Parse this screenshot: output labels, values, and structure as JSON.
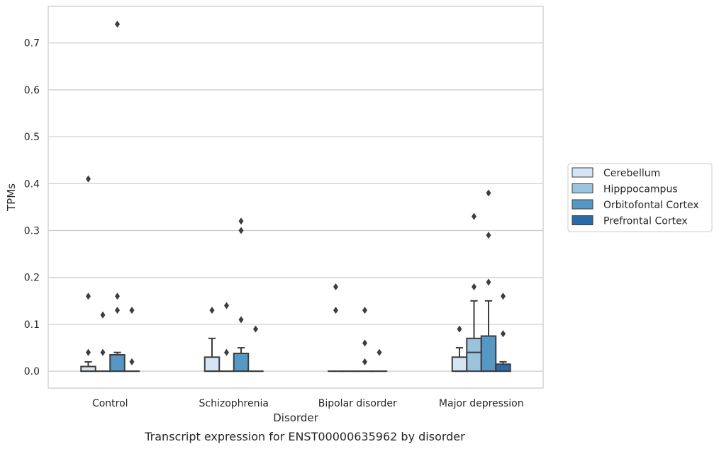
{
  "chart_data": {
    "type": "box",
    "xlabel": "Disorder",
    "ylabel": "TPMs",
    "caption": "Transcript expression for ENST00000635962 by disorder",
    "ylim": [
      -0.036,
      0.778
    ],
    "yticks": [
      "0.0",
      "0.1",
      "0.2",
      "0.3",
      "0.4",
      "0.5",
      "0.6",
      "0.7"
    ],
    "grid": "horizontal",
    "legend_position": "right",
    "categories": [
      "Control",
      "Schizophrenia",
      "Bipolar disorder",
      "Major depression"
    ],
    "series": [
      {
        "name": "Cerebellum",
        "color": "#d6e5f3",
        "boxes": [
          {
            "q1": 0.0,
            "median": 0.0,
            "q3": 0.01,
            "whisker_low": 0.0,
            "whisker_high": 0.02,
            "outliers": [
              0.04,
              0.16,
              0.41
            ]
          },
          {
            "q1": 0.0,
            "median": 0.0,
            "q3": 0.03,
            "whisker_low": 0.0,
            "whisker_high": 0.07,
            "outliers": [
              0.13
            ]
          },
          {
            "q1": 0.0,
            "median": 0.0,
            "q3": 0.0,
            "whisker_low": 0.0,
            "whisker_high": 0.0,
            "outliers": [
              0.13,
              0.18
            ]
          },
          {
            "q1": 0.0,
            "median": 0.0,
            "q3": 0.03,
            "whisker_low": 0.0,
            "whisker_high": 0.05,
            "outliers": [
              0.09
            ]
          }
        ]
      },
      {
        "name": "Hipppocampus",
        "color": "#9ac3dd",
        "boxes": [
          {
            "q1": 0.0,
            "median": 0.0,
            "q3": 0.0,
            "whisker_low": 0.0,
            "whisker_high": 0.0,
            "outliers": [
              0.04,
              0.12
            ]
          },
          {
            "q1": 0.0,
            "median": 0.0,
            "q3": 0.0,
            "whisker_low": 0.0,
            "whisker_high": 0.0,
            "outliers": [
              0.04,
              0.14
            ]
          },
          {
            "q1": 0.0,
            "median": 0.0,
            "q3": 0.0,
            "whisker_low": 0.0,
            "whisker_high": 0.0,
            "outliers": []
          },
          {
            "q1": 0.0,
            "median": 0.04,
            "q3": 0.07,
            "whisker_low": 0.0,
            "whisker_high": 0.15,
            "outliers": [
              0.18,
              0.33
            ]
          }
        ]
      },
      {
        "name": "Orbitofontal Cortex",
        "color": "#5597c5",
        "boxes": [
          {
            "q1": 0.0,
            "median": 0.0,
            "q3": 0.035,
            "whisker_low": 0.0,
            "whisker_high": 0.04,
            "outliers": [
              0.13,
              0.16,
              0.74
            ]
          },
          {
            "q1": 0.0,
            "median": 0.0,
            "q3": 0.038,
            "whisker_low": 0.0,
            "whisker_high": 0.05,
            "outliers": [
              0.11,
              0.3,
              0.32
            ]
          },
          {
            "q1": 0.0,
            "median": 0.0,
            "q3": 0.0,
            "whisker_low": 0.0,
            "whisker_high": 0.0,
            "outliers": [
              0.02,
              0.06,
              0.13
            ]
          },
          {
            "q1": 0.0,
            "median": 0.0,
            "q3": 0.075,
            "whisker_low": 0.0,
            "whisker_high": 0.15,
            "outliers": [
              0.19,
              0.29,
              0.38
            ]
          }
        ]
      },
      {
        "name": "Prefrontal Cortex",
        "color": "#2b6aa8",
        "boxes": [
          {
            "q1": 0.0,
            "median": 0.0,
            "q3": 0.0,
            "whisker_low": 0.0,
            "whisker_high": 0.0,
            "outliers": [
              0.02,
              0.13
            ]
          },
          {
            "q1": 0.0,
            "median": 0.0,
            "q3": 0.0,
            "whisker_low": 0.0,
            "whisker_high": 0.0,
            "outliers": [
              0.09
            ]
          },
          {
            "q1": 0.0,
            "median": 0.0,
            "q3": 0.0,
            "whisker_low": 0.0,
            "whisker_high": 0.0,
            "outliers": [
              0.04
            ]
          },
          {
            "q1": 0.0,
            "median": 0.0,
            "q3": 0.015,
            "whisker_low": 0.0,
            "whisker_high": 0.02,
            "outliers": [
              0.08,
              0.16
            ]
          }
        ]
      }
    ]
  }
}
